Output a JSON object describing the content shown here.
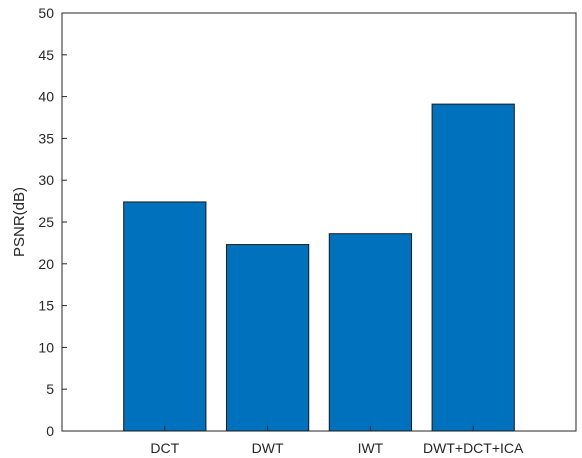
{
  "chart_data": {
    "type": "bar",
    "title": "",
    "xlabel": "",
    "ylabel": "PSNR(dB)",
    "categories": [
      "DCT",
      "DWT",
      "IWT",
      "DWT+DCT+ICA"
    ],
    "values": [
      27.4,
      22.3,
      23.6,
      39.1
    ],
    "ylim": [
      0,
      50
    ],
    "yticks": [
      0,
      5,
      10,
      15,
      20,
      25,
      30,
      35,
      40,
      45,
      50
    ],
    "grid": false,
    "legend": "none",
    "bar_color": "#0072BD",
    "bar_edge_color": "#1a1a1a",
    "axis_color": "#262626"
  }
}
